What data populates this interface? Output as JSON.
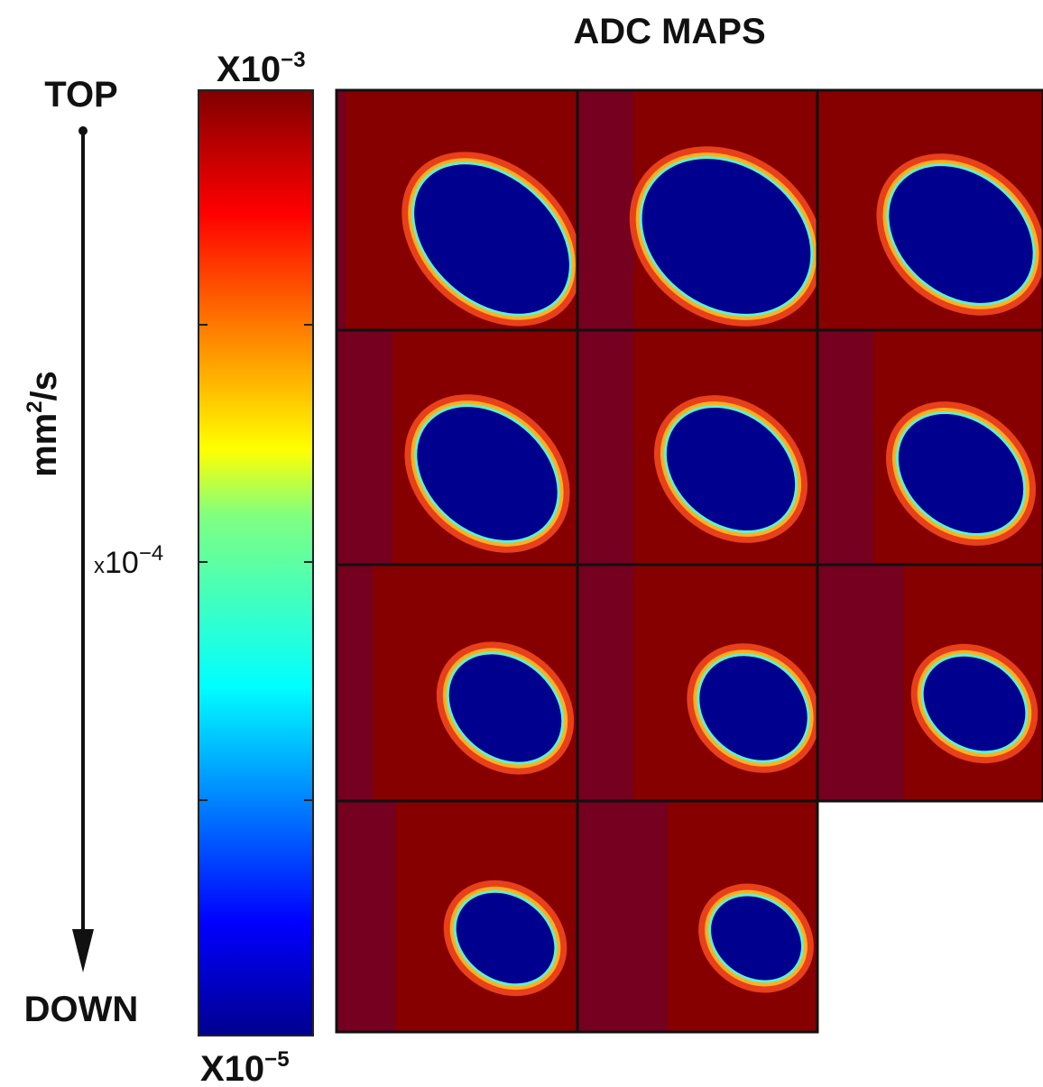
{
  "title": "ADC MAPS",
  "axis": {
    "top": "TOP",
    "bottom": "DOWN",
    "unit": {
      "base": "mm",
      "exp": "2",
      "rest": "/s"
    }
  },
  "colorbar": {
    "max_label": {
      "base": "X10",
      "exp": "−3"
    },
    "mid_label": {
      "prefix": "x",
      "base": "10",
      "exp": "−4"
    },
    "min_label": {
      "base": "X10",
      "exp": "−5"
    }
  }
}
